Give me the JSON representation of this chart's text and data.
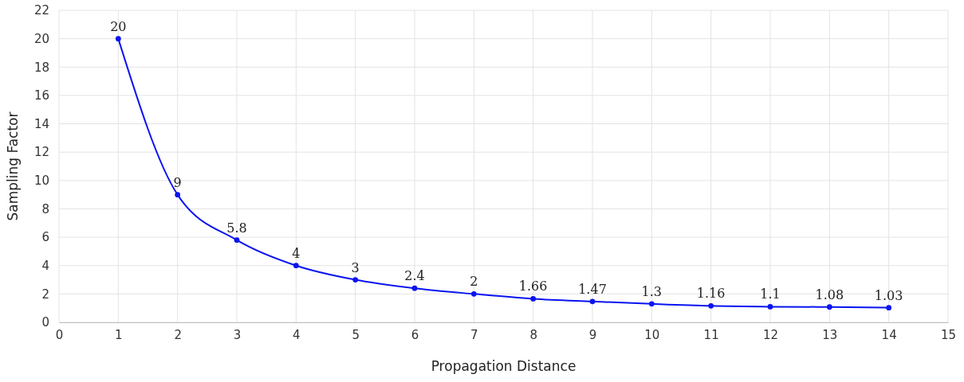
{
  "chart_data": {
    "type": "line",
    "xlabel": "Propagation Distance",
    "ylabel": "Sampling Factor",
    "x": [
      1,
      2,
      3,
      4,
      5,
      6,
      7,
      8,
      9,
      10,
      11,
      12,
      13,
      14
    ],
    "series": [
      {
        "color": "#0a14f0",
        "values": [
          20,
          9,
          5.8,
          4,
          3,
          2.4,
          2,
          1.66,
          1.47,
          1.3,
          1.16,
          1.1,
          1.08,
          1.03
        ]
      }
    ],
    "xlim": [
      0,
      15
    ],
    "xticks": [
      0,
      1,
      2,
      3,
      4,
      5,
      6,
      7,
      8,
      9,
      10,
      11,
      12,
      13,
      14,
      15
    ],
    "ylim": [
      0,
      22
    ],
    "yticks": [
      0,
      2,
      4,
      6,
      8,
      10,
      12,
      14,
      16,
      18,
      20,
      22
    ],
    "grid": true,
    "marker": "circle",
    "line_style": "solid",
    "data_labels": true
  }
}
